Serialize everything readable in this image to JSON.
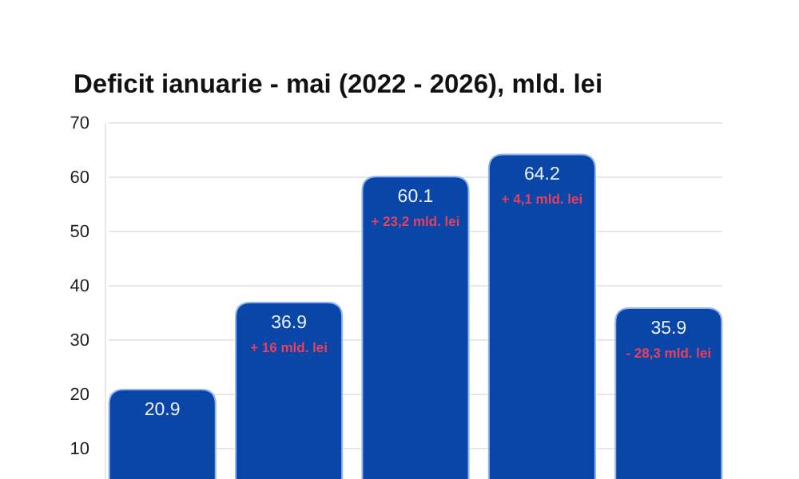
{
  "chart_data": {
    "type": "bar",
    "title": "Deficit ianuarie - mai (2022 - 2026), mld. lei",
    "categories": [
      null,
      null,
      null,
      null,
      null
    ],
    "values": [
      20.9,
      36.9,
      60.1,
      64.2,
      35.9
    ],
    "color": "#0a46a8",
    "ylim": [
      4,
      70
    ],
    "yticks": [
      10,
      20,
      30,
      40,
      50,
      60,
      70
    ],
    "grid": "y",
    "data_labels": true,
    "tick_labels": "y",
    "annotations": [
      "+ 16 mld. lei",
      "+ 23,2 mld. lei",
      "+ 4,1 mld. lei",
      "- 28,3 mld. lei"
    ]
  }
}
